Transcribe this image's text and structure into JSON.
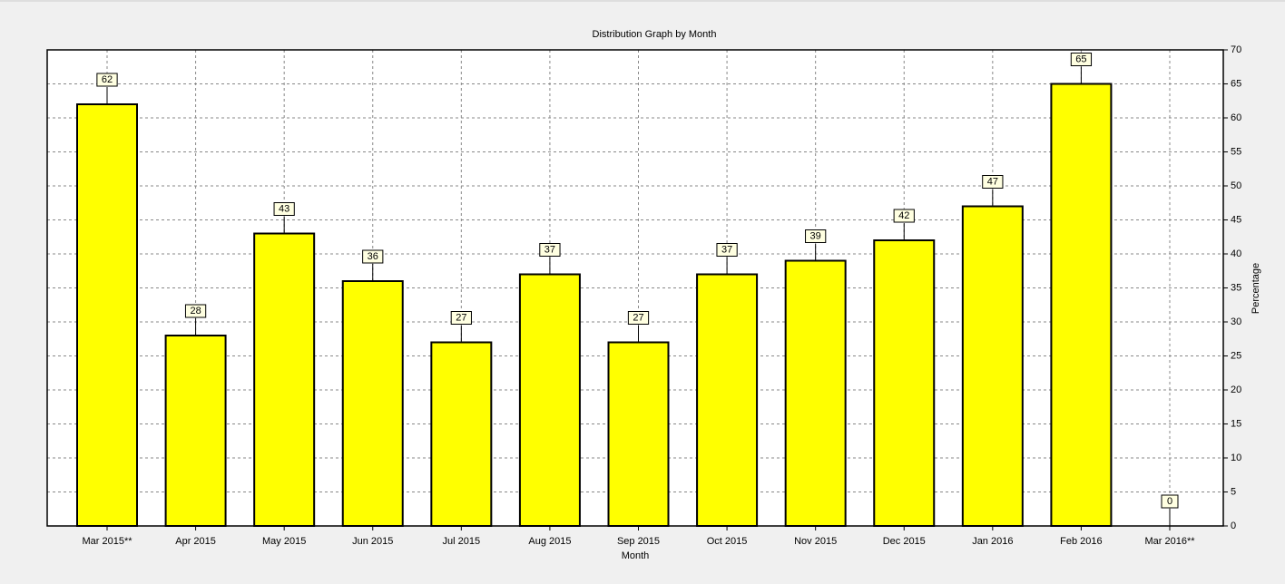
{
  "chart_data": {
    "type": "bar",
    "title": "Distribution Graph by Month",
    "x_label": "Month",
    "y_label": "Percentage",
    "categories": [
      "Mar 2015**",
      "Apr 2015",
      "May 2015",
      "Jun 2015",
      "Jul 2015",
      "Aug 2015",
      "Sep 2015",
      "Oct 2015",
      "Nov 2015",
      "Dec 2015",
      "Jan 2016",
      "Feb 2016",
      "Mar 2016**"
    ],
    "values": [
      62,
      28,
      43,
      36,
      27,
      37,
      27,
      37,
      39,
      42,
      47,
      65,
      0
    ],
    "color": "#ffff00",
    "ylim": [
      0,
      70
    ],
    "yticks": [
      0,
      5,
      10,
      15,
      20,
      25,
      30,
      35,
      40,
      45,
      50,
      55,
      60,
      65,
      70
    ],
    "grid": true,
    "y_axis_side": "right"
  }
}
